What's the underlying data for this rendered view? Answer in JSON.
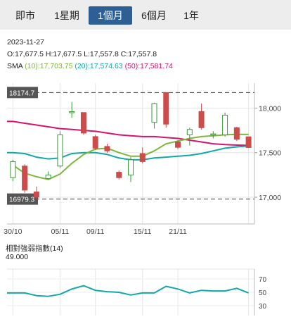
{
  "tabs": [
    {
      "label": "即市",
      "active": false
    },
    {
      "label": "1星期",
      "active": false
    },
    {
      "label": "1個月",
      "active": true
    },
    {
      "label": "6個月",
      "active": false
    },
    {
      "label": "1年",
      "active": false
    }
  ],
  "info": {
    "date": "2023-11-27",
    "ohlc": "O:17,677.5   H:17,677.5   L:17,557.8   C:17,557.8",
    "sma_label": "SMA",
    "sma10": "(10):17,703.75",
    "sma20": "(20):17,574.63",
    "sma50": "(50):17,581.74"
  },
  "colors": {
    "up_candle": "#ffffff",
    "up_border": "#3a9a3a",
    "down_candle": "#cc4b4b",
    "sma10": "#7cb83b",
    "sma20": "#13a8a8",
    "sma50": "#d4156f",
    "rsi": "#13a8a8",
    "tab_active": "#2d5f94"
  },
  "chart_data": [
    {
      "type": "candlestick",
      "x_ticks": [
        "30/10",
        "05/11",
        "09/11",
        "15/11",
        "21/11"
      ],
      "y_ticks": [
        "18,000",
        "17,500",
        "17,000"
      ],
      "ylim": [
        16700,
        18280
      ],
      "high_marker": "18174.7",
      "low_marker": "16979.3",
      "candles": [
        {
          "o": 17220,
          "h": 17420,
          "l": 17180,
          "c": 17400
        },
        {
          "o": 17350,
          "h": 17370,
          "l": 17050,
          "c": 17080
        },
        {
          "o": 17060,
          "h": 17120,
          "l": 16979.3,
          "c": 17000
        },
        {
          "o": 17210,
          "h": 17290,
          "l": 17200,
          "c": 17250
        },
        {
          "o": 17350,
          "h": 17740,
          "l": 17330,
          "c": 17700
        },
        {
          "o": 17950,
          "h": 18070,
          "l": 17890,
          "c": 17960
        },
        {
          "o": 17950,
          "h": 17950,
          "l": 17700,
          "c": 17720
        },
        {
          "o": 17680,
          "h": 17700,
          "l": 17530,
          "c": 17550
        },
        {
          "o": 17570,
          "h": 17600,
          "l": 17500,
          "c": 17520
        },
        {
          "o": 17280,
          "h": 17300,
          "l": 17200,
          "c": 17220
        },
        {
          "o": 17250,
          "h": 17450,
          "l": 17170,
          "c": 17420
        },
        {
          "o": 17490,
          "h": 17560,
          "l": 17380,
          "c": 17400
        },
        {
          "o": 17840,
          "h": 18060,
          "l": 17770,
          "c": 18050
        },
        {
          "o": 18174.7,
          "h": 18174.7,
          "l": 17780,
          "c": 17820
        },
        {
          "o": 17620,
          "h": 17640,
          "l": 17540,
          "c": 17560
        },
        {
          "o": 17700,
          "h": 17780,
          "l": 17580,
          "c": 17760
        },
        {
          "o": 17960,
          "h": 18050,
          "l": 17760,
          "c": 17780
        },
        {
          "o": 17700,
          "h": 17740,
          "l": 17660,
          "c": 17710
        },
        {
          "o": 17700,
          "h": 17950,
          "l": 17680,
          "c": 17920
        },
        {
          "o": 17780,
          "h": 17790,
          "l": 17630,
          "c": 17650
        },
        {
          "o": 17677.5,
          "h": 17677.5,
          "l": 17557.8,
          "c": 17557.8
        }
      ],
      "sma10": [
        17360,
        17270,
        17230,
        17200,
        17260,
        17380,
        17480,
        17540,
        17550,
        17500,
        17460,
        17460,
        17520,
        17600,
        17630,
        17660,
        17680,
        17690,
        17700,
        17705,
        17703.75
      ],
      "sma20": [
        17500,
        17490,
        17450,
        17430,
        17440,
        17490,
        17500,
        17500,
        17480,
        17440,
        17420,
        17420,
        17440,
        17450,
        17460,
        17470,
        17490,
        17520,
        17550,
        17565,
        17574.63
      ],
      "sma50": [
        17850,
        17830,
        17810,
        17790,
        17770,
        17760,
        17750,
        17740,
        17720,
        17700,
        17690,
        17680,
        17680,
        17670,
        17660,
        17640,
        17620,
        17600,
        17590,
        17585,
        17581.74
      ]
    },
    {
      "type": "line",
      "title": "相對強弱指數",
      "period": "(14)",
      "value": "49.000",
      "y_ticks": [
        "70",
        "50",
        "30"
      ],
      "ylim": [
        15,
        85
      ],
      "values": [
        49,
        49,
        45,
        44,
        47,
        55,
        60,
        53,
        51,
        50,
        46,
        49,
        49,
        59,
        55,
        49,
        53,
        52,
        52,
        56,
        49
      ]
    }
  ]
}
